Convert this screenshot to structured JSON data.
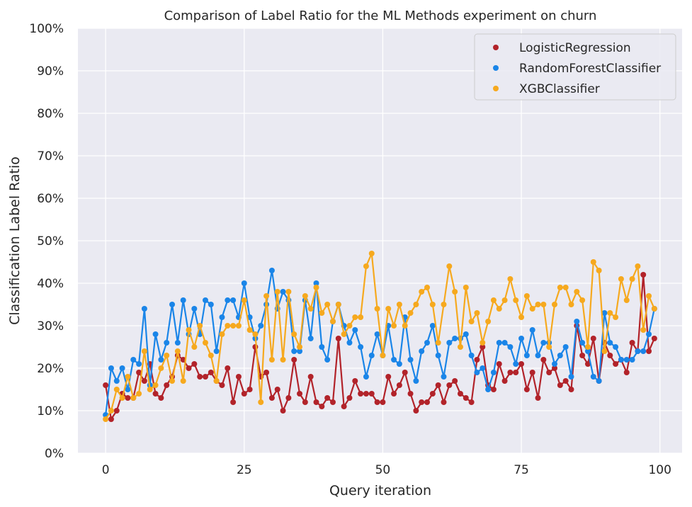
{
  "chart_data": {
    "type": "line",
    "title": "Comparison of Label Ratio for the ML Methods experiment on churn",
    "xlabel": "Query iteration",
    "ylabel": "Classification Label Ratio",
    "xlim": [
      -5,
      104
    ],
    "ylim": [
      0,
      1
    ],
    "x_ticks": [
      0,
      25,
      50,
      75,
      100
    ],
    "y_ticks": [
      0,
      0.1,
      0.2,
      0.3,
      0.4,
      0.5,
      0.6,
      0.7,
      0.8,
      0.9,
      1.0
    ],
    "y_tick_labels": [
      "0%",
      "10%",
      "20%",
      "30%",
      "40%",
      "50%",
      "60%",
      "70%",
      "80%",
      "90%",
      "100%"
    ],
    "grid": true,
    "legend_position": "top-right",
    "background": "#eaeaf2",
    "x": [
      0,
      1,
      2,
      3,
      4,
      5,
      6,
      7,
      8,
      9,
      10,
      11,
      12,
      13,
      14,
      15,
      16,
      17,
      18,
      19,
      20,
      21,
      22,
      23,
      24,
      25,
      26,
      27,
      28,
      29,
      30,
      31,
      32,
      33,
      34,
      35,
      36,
      37,
      38,
      39,
      40,
      41,
      42,
      43,
      44,
      45,
      46,
      47,
      48,
      49,
      50,
      51,
      52,
      53,
      54,
      55,
      56,
      57,
      58,
      59,
      60,
      61,
      62,
      63,
      64,
      65,
      66,
      67,
      68,
      69,
      70,
      71,
      72,
      73,
      74,
      75,
      76,
      77,
      78,
      79,
      80,
      81,
      82,
      83,
      84,
      85,
      86,
      87,
      88,
      89,
      90,
      91,
      92,
      93,
      94,
      95,
      96,
      97,
      98,
      99
    ],
    "series": [
      {
        "name": "LogisticRegression",
        "color": "#b2232a",
        "values": [
          0.16,
          0.08,
          0.1,
          0.14,
          0.13,
          0.13,
          0.19,
          0.17,
          0.21,
          0.14,
          0.13,
          0.16,
          0.18,
          0.23,
          0.22,
          0.2,
          0.21,
          0.18,
          0.18,
          0.19,
          0.17,
          0.16,
          0.2,
          0.12,
          0.18,
          0.14,
          0.15,
          0.25,
          0.18,
          0.19,
          0.13,
          0.15,
          0.1,
          0.13,
          0.22,
          0.14,
          0.12,
          0.18,
          0.12,
          0.11,
          0.13,
          0.12,
          0.27,
          0.11,
          0.13,
          0.17,
          0.14,
          0.14,
          0.14,
          0.12,
          0.12,
          0.18,
          0.14,
          0.16,
          0.19,
          0.14,
          0.1,
          0.12,
          0.12,
          0.14,
          0.16,
          0.12,
          0.16,
          0.17,
          0.14,
          0.13,
          0.12,
          0.22,
          0.25,
          0.16,
          0.15,
          0.21,
          0.17,
          0.19,
          0.19,
          0.21,
          0.15,
          0.19,
          0.13,
          0.22,
          0.19,
          0.2,
          0.16,
          0.17,
          0.15,
          0.3,
          0.23,
          0.21,
          0.27,
          0.17,
          0.26,
          0.23,
          0.21,
          0.22,
          0.19,
          0.26,
          0.24,
          0.42,
          0.24,
          0.27
        ]
      },
      {
        "name": "RandomForestClassifier",
        "color": "#1a85e8",
        "values": [
          0.09,
          0.2,
          0.17,
          0.2,
          0.15,
          0.22,
          0.21,
          0.34,
          0.16,
          0.28,
          0.22,
          0.26,
          0.35,
          0.26,
          0.36,
          0.28,
          0.34,
          0.28,
          0.36,
          0.35,
          0.24,
          0.32,
          0.36,
          0.36,
          0.32,
          0.4,
          0.32,
          0.27,
          0.3,
          0.35,
          0.43,
          0.34,
          0.38,
          0.36,
          0.24,
          0.24,
          0.36,
          0.27,
          0.4,
          0.25,
          0.22,
          0.31,
          0.35,
          0.3,
          0.26,
          0.29,
          0.25,
          0.18,
          0.23,
          0.28,
          0.23,
          0.3,
          0.22,
          0.21,
          0.32,
          0.22,
          0.17,
          0.24,
          0.26,
          0.3,
          0.23,
          0.18,
          0.26,
          0.27,
          0.27,
          0.28,
          0.23,
          0.19,
          0.2,
          0.15,
          0.19,
          0.26,
          0.26,
          0.25,
          0.21,
          0.27,
          0.23,
          0.29,
          0.23,
          0.26,
          0.26,
          0.21,
          0.23,
          0.25,
          0.18,
          0.31,
          0.26,
          0.24,
          0.18,
          0.17,
          0.33,
          0.26,
          0.25,
          0.22,
          0.22,
          0.22,
          0.24,
          0.24,
          0.28,
          0.34
        ]
      },
      {
        "name": "XGBClassifier",
        "color": "#f6a91e",
        "values": [
          0.08,
          0.1,
          0.15,
          0.13,
          0.18,
          0.13,
          0.14,
          0.24,
          0.15,
          0.16,
          0.2,
          0.23,
          0.17,
          0.24,
          0.17,
          0.29,
          0.25,
          0.3,
          0.26,
          0.23,
          0.17,
          0.28,
          0.3,
          0.3,
          0.3,
          0.36,
          0.29,
          0.28,
          0.12,
          0.37,
          0.22,
          0.38,
          0.22,
          0.38,
          0.28,
          0.25,
          0.37,
          0.34,
          0.39,
          0.33,
          0.35,
          0.31,
          0.35,
          0.28,
          0.3,
          0.32,
          0.32,
          0.44,
          0.47,
          0.34,
          0.23,
          0.34,
          0.3,
          0.35,
          0.3,
          0.33,
          0.35,
          0.38,
          0.39,
          0.35,
          0.26,
          0.35,
          0.44,
          0.38,
          0.25,
          0.39,
          0.31,
          0.33,
          0.26,
          0.31,
          0.36,
          0.34,
          0.36,
          0.41,
          0.36,
          0.32,
          0.37,
          0.34,
          0.35,
          0.35,
          0.25,
          0.35,
          0.39,
          0.39,
          0.35,
          0.38,
          0.36,
          0.25,
          0.45,
          0.43,
          0.24,
          0.33,
          0.32,
          0.41,
          0.36,
          0.41,
          0.44,
          0.29,
          0.37,
          0.34
        ]
      }
    ]
  }
}
